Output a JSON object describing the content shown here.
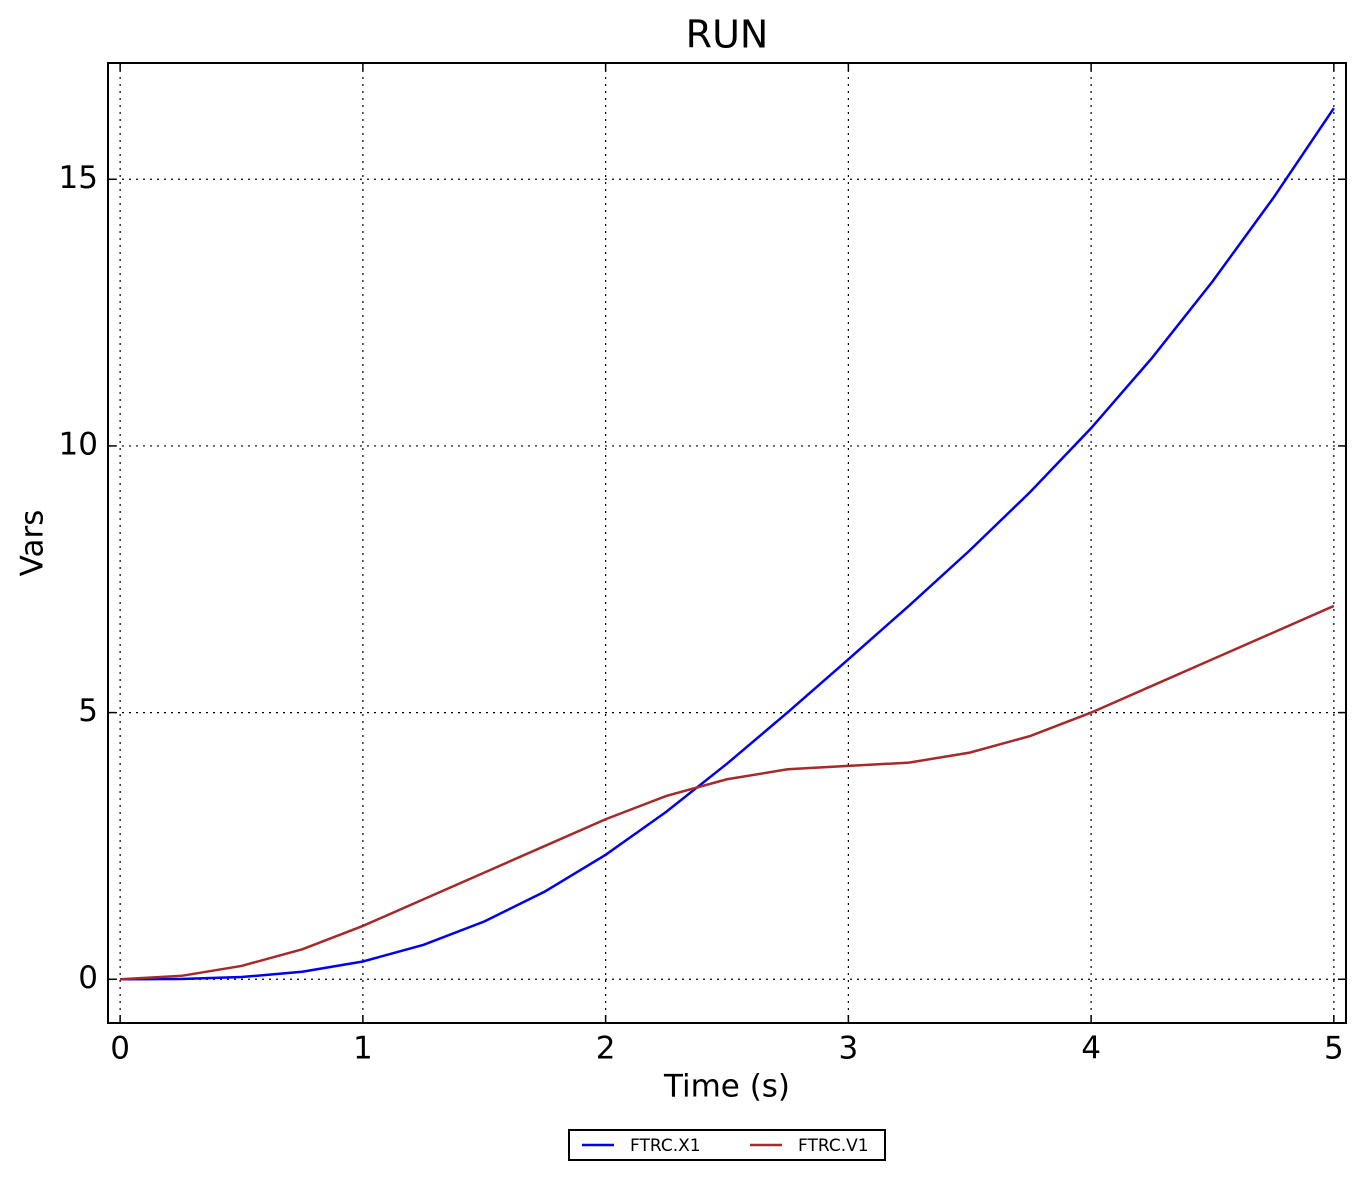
{
  "chart_data": {
    "type": "line",
    "title": "RUN",
    "x_label": "Time (s)",
    "y_label": "Vars",
    "x": [
      0,
      0.25,
      0.5,
      0.75,
      1,
      1.25,
      1.5,
      1.75,
      2,
      2.25,
      2.5,
      2.75,
      3,
      3.25,
      3.5,
      3.75,
      4,
      4.25,
      4.5,
      4.75,
      5
    ],
    "series": [
      {
        "name": "FTRC.X1",
        "color": "#0000ee",
        "values": [
          0,
          0.0052,
          0.0417,
          0.1406,
          0.3333,
          0.6458,
          1.0833,
          1.6458,
          2.3333,
          3.1406,
          4.0417,
          5.0052,
          6,
          7.0052,
          8.0417,
          9.1406,
          10.3333,
          11.6458,
          13.0833,
          14.6458,
          16.3333
        ]
      },
      {
        "name": "FTRC.V1",
        "color": "#a52a2a",
        "values": [
          0,
          0.0625,
          0.25,
          0.5625,
          1,
          1.5,
          2,
          2.5,
          3,
          3.4375,
          3.75,
          3.9375,
          4,
          4.0625,
          4.25,
          4.5625,
          5,
          5.5,
          6,
          6.5,
          7
        ]
      }
    ],
    "xlim": [
      -0.05,
      5.05
    ],
    "ylim": [
      -0.82,
      17.18
    ],
    "xticks": [
      0,
      1,
      2,
      3,
      4,
      5
    ],
    "yticks": [
      0,
      5,
      10,
      15
    ],
    "grid": true,
    "legend": "bottom"
  }
}
